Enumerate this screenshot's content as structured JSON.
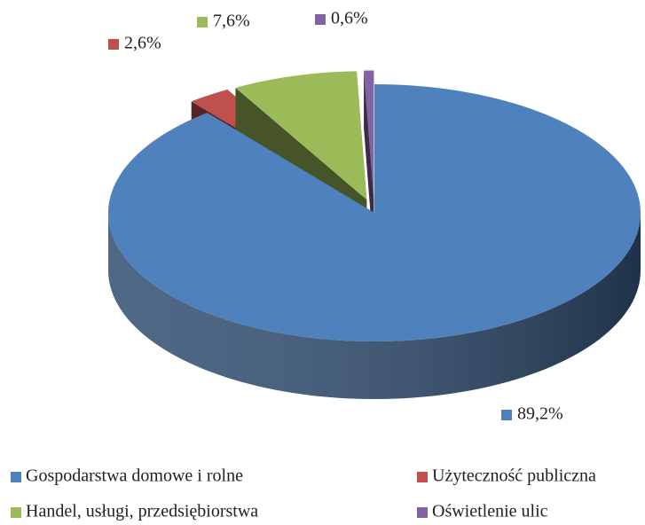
{
  "chart_data": {
    "type": "pie",
    "categories": [
      "Gospodarstwa domowe i rolne",
      "Użyteczność publiczna",
      "Handel, usługi, przedsiębiorstwa",
      "Oświetlenie ulic"
    ],
    "values": [
      89.2,
      2.6,
      7.6,
      0.6
    ],
    "value_labels": [
      "89,2%",
      "2,6%",
      "7,6%",
      "0,6%"
    ],
    "colors": [
      "#4f81bd",
      "#c0504d",
      "#9bbb59",
      "#8064a2"
    ],
    "legend": "bottom"
  }
}
